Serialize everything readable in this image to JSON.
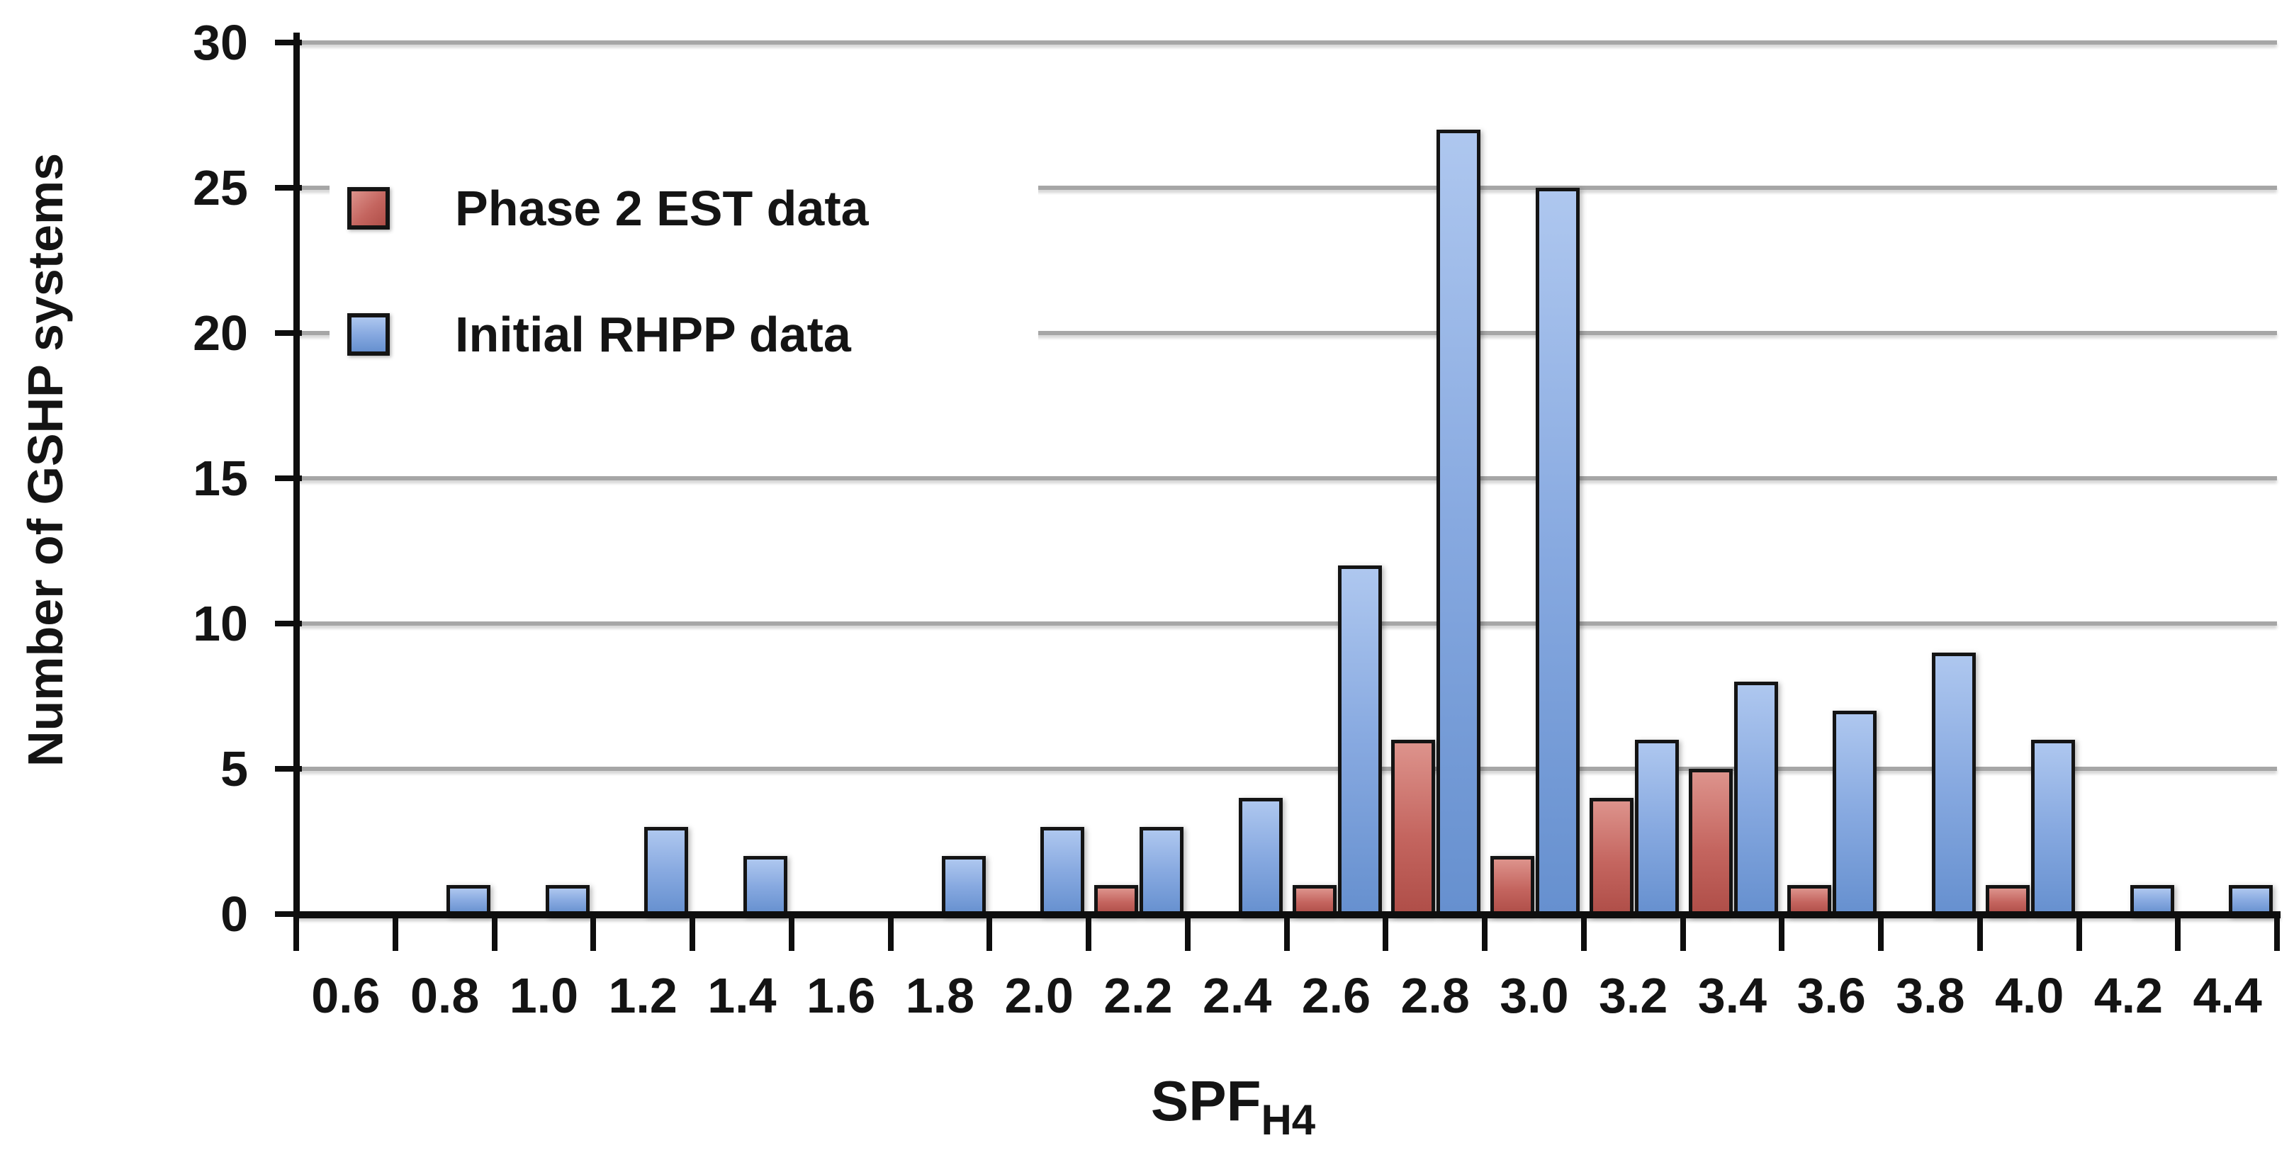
{
  "chart_data": {
    "type": "bar",
    "title": "",
    "ylabel": "Number of GSHP systems",
    "xlabel": "SPF",
    "xlabel_sub": "H4",
    "ylim": [
      0,
      30
    ],
    "y_ticks": [
      0,
      5,
      10,
      15,
      20,
      25,
      30
    ],
    "grid": "horizontal",
    "legend_position": "inside-top-left",
    "categories": [
      "0.6",
      "0.8",
      "1.0",
      "1.2",
      "1.4",
      "1.6",
      "1.8",
      "2.0",
      "2.2",
      "2.4",
      "2.6",
      "2.8",
      "3.0",
      "3.2",
      "3.4",
      "3.6",
      "3.8",
      "4.0",
      "4.2",
      "4.4"
    ],
    "series": [
      {
        "key": "phase2-est",
        "name": "Phase 2 EST data",
        "color": "#c0504d",
        "values": [
          0,
          0,
          0,
          0,
          0,
          0,
          0,
          0,
          1,
          0,
          1,
          6,
          2,
          4,
          5,
          1,
          0,
          1,
          0,
          0
        ]
      },
      {
        "key": "initial-rhpp",
        "name": "Initial RHPP data",
        "color": "#8faadc",
        "values": [
          0,
          1,
          1,
          3,
          2,
          0,
          2,
          3,
          3,
          4,
          12,
          27,
          25,
          6,
          8,
          7,
          9,
          6,
          1,
          1
        ]
      }
    ],
    "colors": {
      "gridline": "#a6a6a6",
      "axis": "#0e0e0e",
      "text": "#141414",
      "background": "#ffffff"
    }
  }
}
